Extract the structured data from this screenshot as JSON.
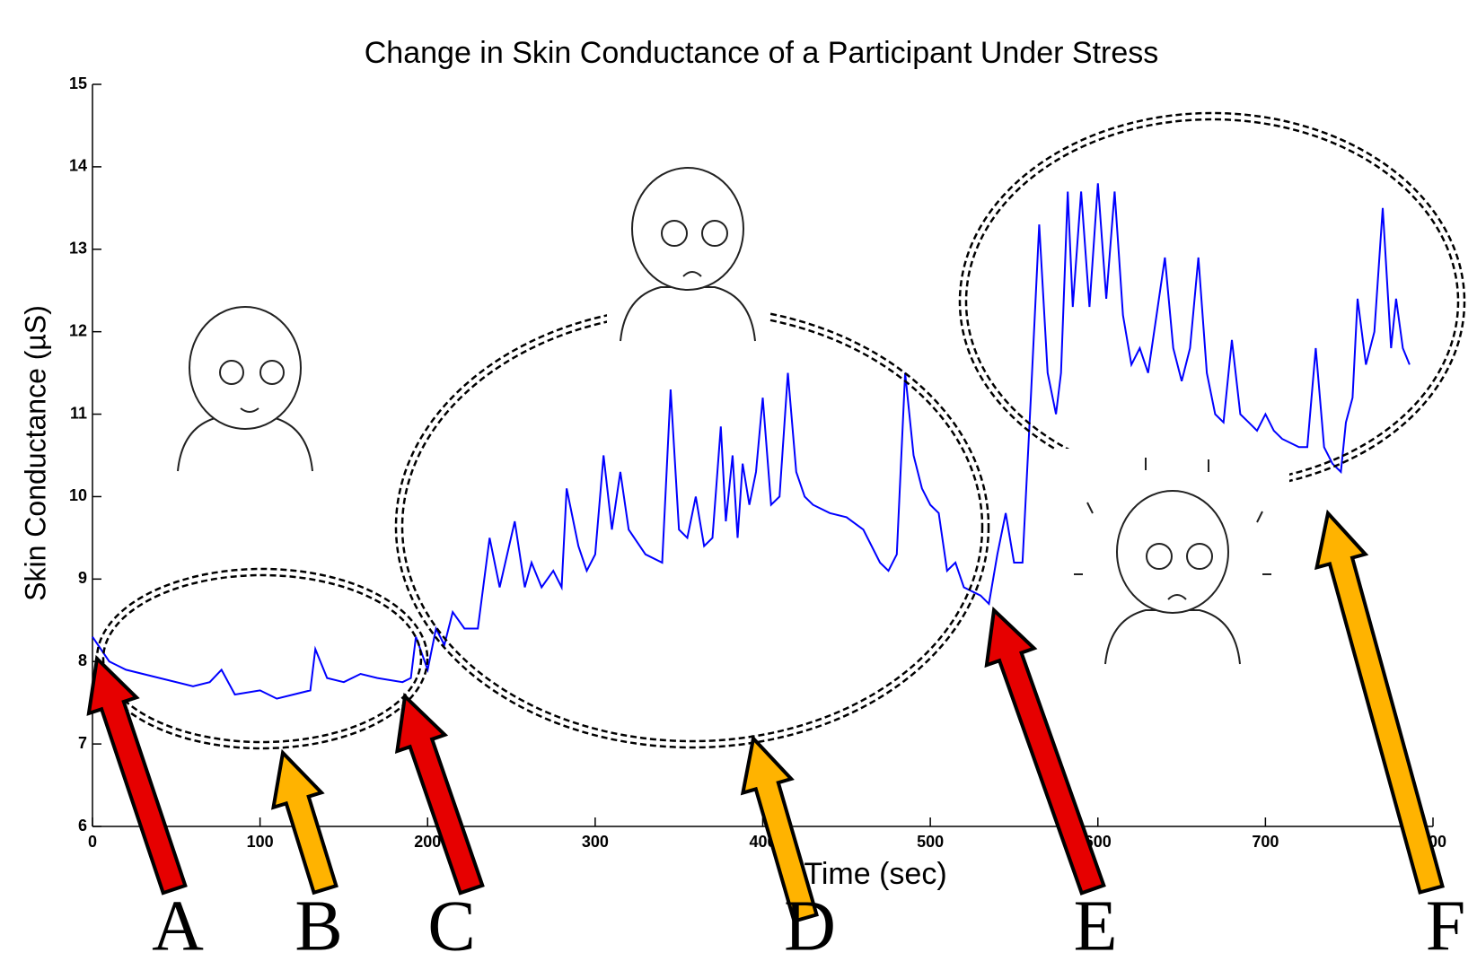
{
  "chart_data": {
    "type": "line",
    "title": "Change in Skin Conductance of a Participant Under Stress",
    "xlabel": "Time (sec)",
    "ylabel": "Skin Conductance (µS)",
    "color": "#0000ff",
    "xlim": [
      0,
      800
    ],
    "xticks": [
      0,
      100,
      200,
      300,
      400,
      500,
      600,
      700,
      800
    ],
    "ylim": [
      6,
      15
    ],
    "yticks": [
      6,
      7,
      8,
      9,
      10,
      11,
      12,
      13,
      14,
      15
    ],
    "x": [
      0,
      10,
      20,
      40,
      60,
      70,
      77,
      85,
      100,
      110,
      120,
      130,
      133,
      140,
      150,
      160,
      170,
      185,
      190,
      193,
      200,
      205,
      210,
      215,
      222,
      230,
      237,
      243,
      252,
      258,
      262,
      268,
      275,
      280,
      283,
      290,
      295,
      300,
      305,
      310,
      315,
      320,
      330,
      340,
      345,
      350,
      355,
      360,
      365,
      370,
      375,
      378,
      382,
      385,
      388,
      392,
      396,
      400,
      405,
      410,
      415,
      420,
      425,
      430,
      440,
      450,
      460,
      470,
      475,
      480,
      485,
      490,
      495,
      500,
      505,
      510,
      515,
      520,
      530,
      535,
      540,
      545,
      550,
      555,
      560,
      565,
      570,
      575,
      578,
      582,
      585,
      590,
      595,
      600,
      605,
      610,
      615,
      620,
      625,
      630,
      635,
      640,
      645,
      650,
      655,
      660,
      665,
      670,
      675,
      680,
      685,
      690,
      695,
      700,
      705,
      710,
      720,
      725,
      730,
      735,
      740,
      745,
      748,
      752,
      755,
      760,
      765,
      770,
      775,
      778,
      782,
      786
    ],
    "values": [
      8.3,
      8.0,
      7.9,
      7.8,
      7.7,
      7.75,
      7.9,
      7.6,
      7.65,
      7.55,
      7.6,
      7.65,
      8.15,
      7.8,
      7.75,
      7.85,
      7.8,
      7.75,
      7.8,
      8.3,
      7.9,
      8.4,
      8.2,
      8.6,
      8.4,
      8.4,
      9.5,
      8.9,
      9.7,
      8.9,
      9.2,
      8.9,
      9.1,
      8.9,
      10.1,
      9.4,
      9.1,
      9.3,
      10.5,
      9.6,
      10.3,
      9.6,
      9.3,
      9.2,
      11.3,
      9.6,
      9.5,
      10.0,
      9.4,
      9.5,
      10.85,
      9.7,
      10.5,
      9.5,
      10.4,
      9.9,
      10.3,
      11.2,
      9.9,
      10.0,
      11.5,
      10.3,
      10.0,
      9.9,
      9.8,
      9.75,
      9.6,
      9.2,
      9.1,
      9.3,
      11.5,
      10.5,
      10.1,
      9.9,
      9.8,
      9.1,
      9.2,
      8.9,
      8.8,
      8.7,
      9.3,
      9.8,
      9.2,
      9.2,
      11.2,
      13.3,
      11.5,
      11.0,
      11.5,
      13.7,
      12.3,
      13.7,
      12.3,
      13.8,
      12.4,
      13.7,
      12.2,
      11.6,
      11.8,
      11.5,
      12.2,
      12.9,
      11.8,
      11.4,
      11.8,
      12.9,
      11.5,
      11.0,
      10.9,
      11.9,
      11.0,
      10.9,
      10.8,
      11.0,
      10.8,
      10.7,
      10.6,
      10.6,
      11.8,
      10.6,
      10.4,
      10.3,
      10.9,
      11.2,
      12.4,
      11.6,
      12.0,
      13.5,
      11.8,
      12.4,
      11.8,
      11.6
    ],
    "annotations": [
      "A",
      "B",
      "C",
      "D",
      "E",
      "F"
    ]
  }
}
